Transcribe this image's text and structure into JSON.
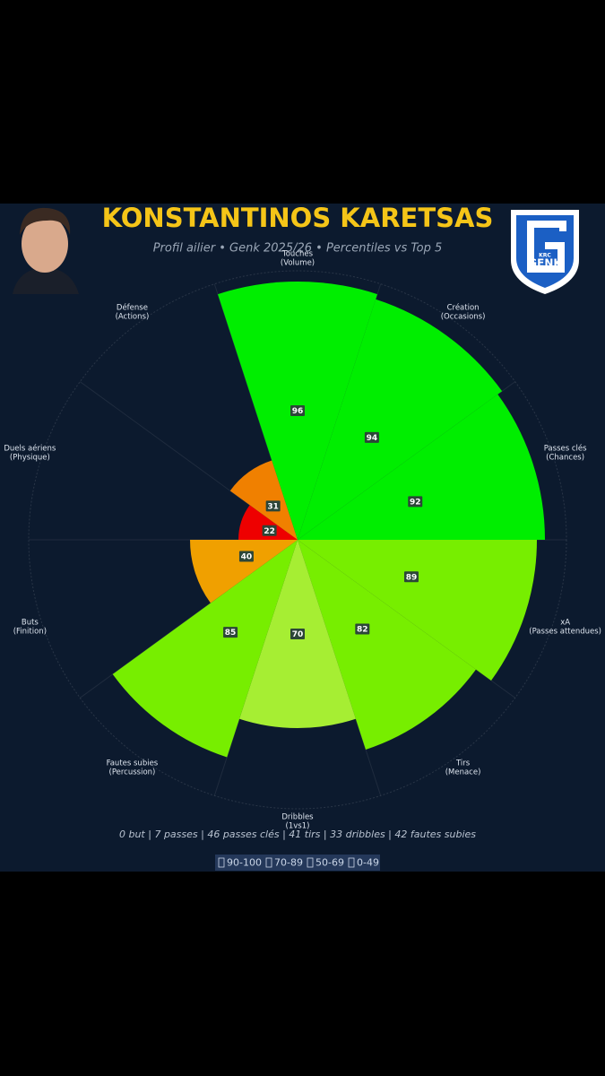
{
  "header": {
    "title": "KONSTANTINOS KARETSAS",
    "subtitle": "Profil ailier • Genk 2025/26 • Percentiles vs Top 5",
    "logo": {
      "small": "KRC",
      "name": "GENK"
    }
  },
  "chart_data": {
    "type": "polar-bar",
    "categories": [
      "Touches",
      "Création",
      "Passes clés",
      "xA",
      "Tirs",
      "Dribbles",
      "Fautes subies",
      "Buts",
      "Duels aériens",
      "Défense"
    ],
    "category_notes": [
      "(Volume)",
      "(Occasions)",
      "(Chances)",
      "(Passes attendues)",
      "(Menace)",
      "(1vs1)",
      "(Percussion)",
      "(Finition)",
      "(Physique)",
      "(Actions)"
    ],
    "values": [
      96,
      94,
      92,
      89,
      82,
      70,
      85,
      40,
      22,
      31
    ],
    "colors": [
      "#00ee00",
      "#00ee00",
      "#00ee00",
      "#77ee00",
      "#77ee00",
      "#a6ee33",
      "#77ee00",
      "#f0a000",
      "#ee0000",
      "#f08000"
    ],
    "ylim": [
      0,
      100
    ],
    "grid": true
  },
  "footer": {
    "summary": "0 but | 7 passes | 46 passes clés | 41 tirs | 33 dribbles | 42 fautes subies",
    "legend": [
      "90-100",
      "70-89",
      "50-69",
      "0-49"
    ]
  }
}
